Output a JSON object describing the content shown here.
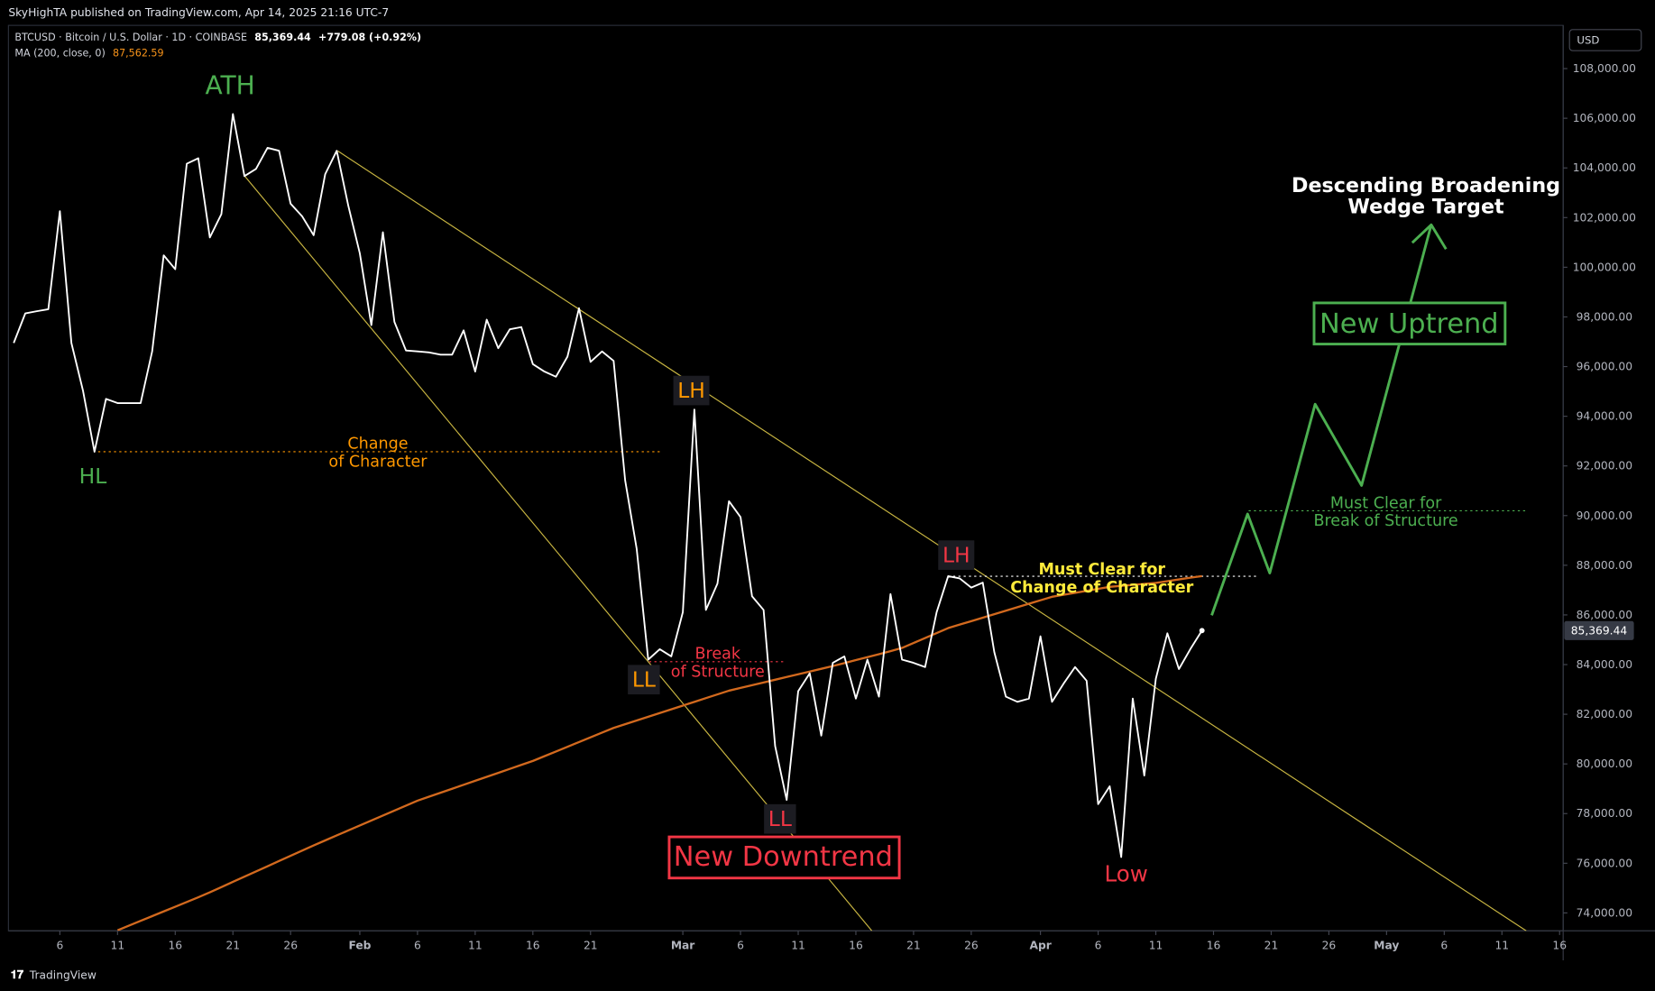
{
  "header": "SkyHighTA published on TradingView.com, Apr 14, 2025 21:16 UTC-7",
  "footer": "TradingView",
  "chart_data": {
    "type": "line",
    "currency": "USD",
    "categories": [
      null,
      null,
      null,
      null,
      "6",
      null,
      null,
      null,
      null,
      "11",
      null,
      null,
      null,
      null,
      "16",
      null,
      null,
      null,
      null,
      "21",
      null,
      null,
      null,
      null,
      "26",
      null,
      null,
      null,
      null,
      null,
      "Feb",
      null,
      null,
      null,
      null,
      "6",
      null,
      null,
      null,
      null,
      "11",
      null,
      null,
      null,
      null,
      "16",
      null,
      null,
      null,
      null,
      "21",
      null,
      null,
      null,
      null,
      null,
      null,
      null,
      "Mar",
      null,
      null,
      null,
      null,
      "6",
      null,
      null,
      null,
      null,
      "11",
      null,
      null,
      null,
      null,
      "16",
      null,
      null,
      null,
      null,
      "21",
      null,
      null,
      null,
      null,
      "26",
      null,
      null,
      null,
      null,
      null,
      "Apr",
      null,
      null,
      null,
      null,
      "6",
      null,
      null,
      null,
      null,
      "11",
      null,
      null,
      null,
      null,
      "16",
      null,
      null,
      null,
      null,
      "21",
      null,
      null,
      null,
      null,
      "26",
      null,
      null,
      null,
      null,
      "May",
      null,
      null,
      null,
      null,
      "6",
      null,
      null,
      null,
      null,
      "11",
      null,
      null,
      null,
      null,
      "16"
    ],
    "series": [
      {
        "name": "BTCUSD · Bitcoin / U.S. Dollar · 1D · COINBASE",
        "color": "#ffffff",
        "last_value_label": "85,369.44",
        "change_label": "+779.08 (+0.92%)",
        "values": [
          96950,
          98140,
          98230,
          98310,
          102260,
          96950,
          95040,
          92570,
          94700,
          94530,
          94530,
          94530,
          96610,
          100480,
          99920,
          104170,
          104390,
          101200,
          102140,
          106170,
          103670,
          103960,
          104810,
          104690,
          102560,
          102050,
          101290,
          103750,
          104690,
          102480,
          100560,
          97670,
          101410,
          97800,
          96650,
          96610,
          96570,
          96480,
          96480,
          97460,
          95800,
          97890,
          96740,
          97500,
          97590,
          96100,
          95800,
          95590,
          96400,
          98350,
          96190,
          96610,
          96230,
          91420,
          88660,
          84200,
          84620,
          84330,
          86110,
          94270,
          86200,
          87260,
          90580,
          89940,
          86750,
          86200,
          80720,
          78550,
          82930,
          83650,
          81140,
          84070,
          84330,
          82630,
          84200,
          82710,
          86840,
          84200,
          84070,
          83900,
          86110,
          87560,
          87470,
          87100,
          87300,
          84500,
          82710,
          82500,
          82630,
          85140,
          82500,
          83230,
          83900,
          83350,
          78380,
          79100,
          76250,
          82630,
          79530,
          83430,
          85260,
          83820,
          84630,
          85369.44,
          null,
          null,
          null,
          null,
          null,
          null,
          null,
          null,
          null,
          null,
          null,
          null,
          null,
          null,
          null,
          null,
          null,
          null,
          null,
          null,
          null,
          null,
          null,
          null,
          null,
          null,
          null,
          null,
          null,
          null,
          null
        ]
      },
      {
        "name": "MA (200, close, 0)",
        "color": "#d2691e",
        "last_value_label": "87,562.59",
        "values": [
          null,
          null,
          null,
          null,
          null,
          null,
          null,
          null,
          null,
          73300,
          73490,
          73680,
          73870,
          74060,
          74250,
          74440,
          74630,
          74830,
          75040,
          75250,
          75460,
          75670,
          75880,
          76090,
          76300,
          76510,
          76720,
          76920,
          77120,
          77320,
          77520,
          77720,
          77920,
          78120,
          78320,
          78520,
          78680,
          78840,
          79000,
          79160,
          79320,
          79480,
          79640,
          79800,
          79960,
          80120,
          80310,
          80500,
          80690,
          80880,
          81070,
          81260,
          81450,
          81600,
          81750,
          81900,
          82050,
          82200,
          82350,
          82500,
          82650,
          82800,
          82950,
          83060,
          83170,
          83280,
          83390,
          83500,
          83610,
          83720,
          83830,
          83940,
          84060,
          84180,
          84300,
          84420,
          84540,
          84670,
          84870,
          85070,
          85270,
          85470,
          85610,
          85750,
          85890,
          86030,
          86170,
          86310,
          86450,
          86590,
          86730,
          86810,
          86890,
          86970,
          87050,
          87130,
          87170,
          87210,
          87250,
          87290,
          87360,
          87430,
          87500,
          87562.59,
          null,
          null,
          null,
          null,
          null,
          null,
          null,
          null,
          null,
          null,
          null,
          null,
          null,
          null,
          null,
          null,
          null,
          null,
          null,
          null,
          null,
          null,
          null,
          null,
          null,
          null,
          null,
          null,
          null,
          null,
          null
        ]
      }
    ],
    "ylim": [
      73280,
      109740
    ],
    "yticks": [
      {
        "value": 74000,
        "label": "74,000.00"
      },
      {
        "value": 76000,
        "label": "76,000.00"
      },
      {
        "value": 78000,
        "label": "78,000.00"
      },
      {
        "value": 80000,
        "label": "80,000.00"
      },
      {
        "value": 82000,
        "label": "82,000.00"
      },
      {
        "value": 84000,
        "label": "84,000.00"
      },
      {
        "value": 86000,
        "label": "86,000.00"
      },
      {
        "value": 88000,
        "label": "88,000.00"
      },
      {
        "value": 90000,
        "label": "90,000.00"
      },
      {
        "value": 92000,
        "label": "92,000.00"
      },
      {
        "value": 94000,
        "label": "94,000.00"
      },
      {
        "value": 96000,
        "label": "96,000.00"
      },
      {
        "value": 98000,
        "label": "98,000.00"
      },
      {
        "value": 100000,
        "label": "100,000.00"
      },
      {
        "value": 102000,
        "label": "102,000.00"
      },
      {
        "value": 104000,
        "label": "104,000.00"
      },
      {
        "value": 106000,
        "label": "106,000.00"
      },
      {
        "value": 108000,
        "label": "108,000.00"
      }
    ],
    "annotations": [
      {
        "lines": [
          "ATH"
        ],
        "color": "#4caf50"
      },
      {
        "lines": [
          "HL"
        ],
        "color": "#4caf50"
      },
      {
        "lines": [
          "Change",
          "of Character"
        ],
        "color": "#ff9800"
      },
      {
        "lines": [
          "LH"
        ],
        "color": "#ff9800"
      },
      {
        "lines": [
          "LL"
        ],
        "color": "#ff9800"
      },
      {
        "lines": [
          "Break",
          "of Structure"
        ],
        "color": "#f23645"
      },
      {
        "lines": [
          "LL"
        ],
        "color": "#f23645"
      },
      {
        "lines": [
          "New Downtrend"
        ],
        "color": "#f23645"
      },
      {
        "lines": [
          "LH"
        ],
        "color": "#f23645"
      },
      {
        "lines": [
          "Must Clear for",
          "Change of Character"
        ],
        "color": "#ffeb3b"
      },
      {
        "lines": [
          "Low"
        ],
        "color": "#f23645"
      },
      {
        "lines": [
          "Must Clear for",
          "Break of Structure"
        ],
        "color": "#4caf50"
      },
      {
        "lines": [
          "New Uptrend"
        ],
        "color": "#4caf50"
      },
      {
        "lines": [
          "Descending Broadening",
          "Wedge Target"
        ],
        "color": "#ffffff"
      }
    ]
  }
}
